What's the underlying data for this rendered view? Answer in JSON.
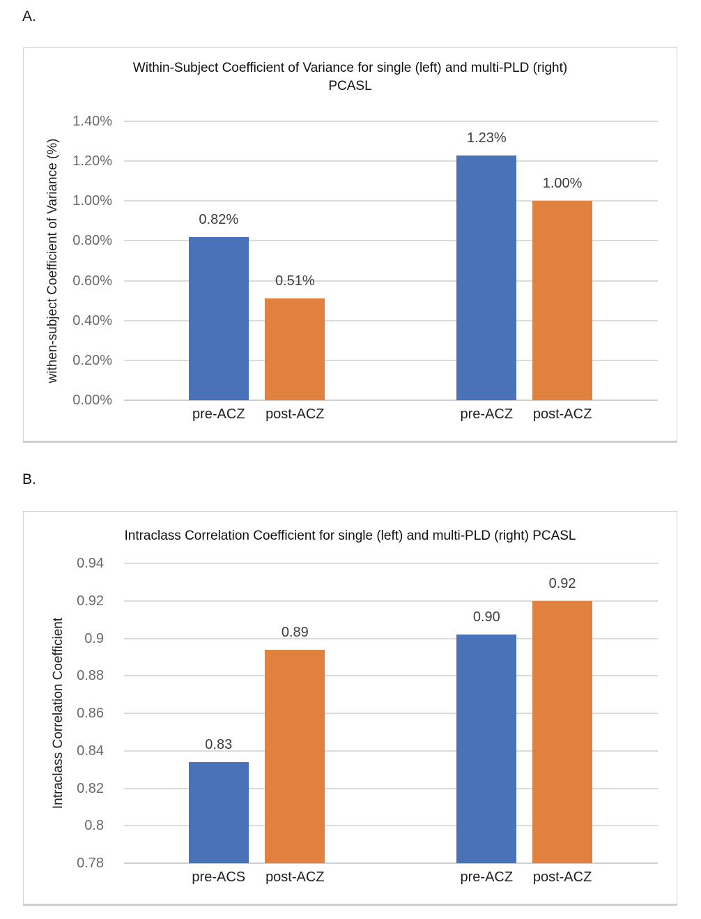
{
  "figure": {
    "panel_a_label": "A.",
    "panel_b_label": "B."
  },
  "colors": {
    "series_blue": "#4a72b8",
    "series_orange": "#e0813f",
    "gridline": "#dbdbdb",
    "axis_line": "#cfcfcf",
    "tick_text": "#6a6a6a",
    "value_text": "#3d3d3d",
    "category_text": "#1f1f1f",
    "title_text": "#0f0f0f"
  },
  "chart_data": [
    {
      "type": "bar",
      "title": "Within-Subject Coefficient of Variance for single (left) and multi-PLD (right) PCASL",
      "title_lines": [
        "Within-Subject Coefficient of Variance for single (left) and multi-PLD (right)",
        "PCASL"
      ],
      "ylabel": "withen-subject Coefficient of Variance (%)",
      "xlabel": "",
      "ylim": [
        0,
        1.4
      ],
      "ytick_values": [
        1.4,
        1.2,
        1.0,
        0.8,
        0.6,
        0.4,
        0.2,
        0.0
      ],
      "ytick_labels": [
        "1.40%",
        "1.20%",
        "1.00%",
        "0.80%",
        "0.60%",
        "0.40%",
        "0.20%",
        "0.00%"
      ],
      "grid": true,
      "legend": "none",
      "groups": [
        "single-PLD",
        "single-PLD",
        "multi-PLD",
        "multi-PLD"
      ],
      "categories": [
        "pre-ACZ",
        "post-ACZ",
        "pre-ACZ",
        "post-ACZ"
      ],
      "series_colors": [
        "series_blue",
        "series_orange",
        "series_blue",
        "series_orange"
      ],
      "values": [
        0.82,
        0.51,
        1.23,
        1.0
      ],
      "value_labels": [
        "0.82%",
        "0.51%",
        "1.23%",
        "1.00%"
      ]
    },
    {
      "type": "bar",
      "title": "Intraclass Correlation Coefficient for single (left) and multi-PLD (right) PCASL",
      "title_lines": [
        "Intraclass Correlation Coefficient for single (left) and multi-PLD (right) PCASL"
      ],
      "ylabel": "Intraclass Correlation Coefficient",
      "xlabel": "",
      "ylim": [
        0.78,
        0.94
      ],
      "ytick_values": [
        0.94,
        0.92,
        0.9,
        0.88,
        0.86,
        0.84,
        0.82,
        0.8,
        0.78
      ],
      "ytick_labels": [
        "0.94",
        "0.92",
        "0.9",
        "0.88",
        "0.86",
        "0.84",
        "0.82",
        "0.8",
        "0.78"
      ],
      "grid": true,
      "legend": "none",
      "groups": [
        "single-PLD",
        "single-PLD",
        "multi-PLD",
        "multi-PLD"
      ],
      "categories": [
        "pre-ACS",
        "post-ACZ",
        "pre-ACZ",
        "post-ACZ"
      ],
      "series_colors": [
        "series_blue",
        "series_orange",
        "series_blue",
        "series_orange"
      ],
      "values": [
        0.834,
        0.894,
        0.902,
        0.92
      ],
      "value_labels": [
        "0.83",
        "0.89",
        "0.90",
        "0.92"
      ]
    }
  ]
}
